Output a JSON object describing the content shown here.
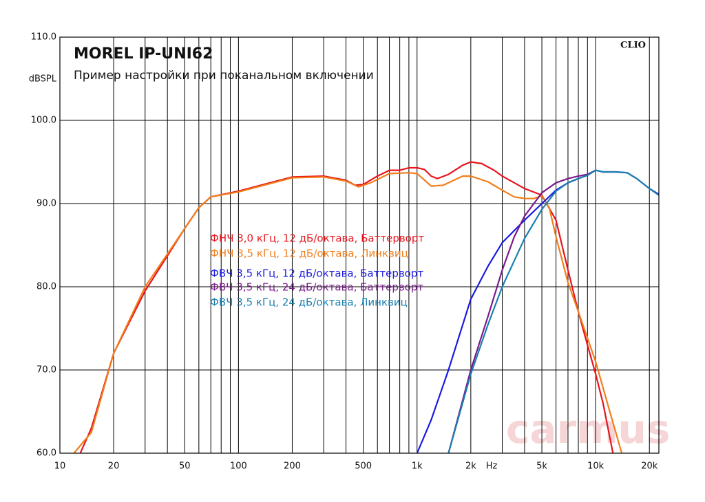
{
  "chart_data": {
    "type": "line",
    "title": "MOREL IP-UNI62",
    "subtitle": "Пример настройки при поканальном включении",
    "ylabel": "dBSPL",
    "xlabel": "Hz",
    "brand": "CLIO",
    "watermark": "carmus",
    "log_x": true,
    "grid": true,
    "xlim": [
      10,
      22600
    ],
    "ylim": [
      60,
      110
    ],
    "xticks": [
      10,
      20,
      50,
      100,
      200,
      500,
      {
        "value": 1000,
        "label": "1k"
      },
      {
        "value": 2000,
        "label": "2k"
      },
      {
        "value": 5000,
        "label": "5k"
      },
      {
        "value": 10000,
        "label": "10k"
      },
      {
        "value": 20000,
        "label": "20k"
      }
    ],
    "xminor": [
      30,
      40,
      60,
      70,
      80,
      90,
      300,
      400,
      600,
      700,
      800,
      900,
      3000,
      4000,
      6000,
      7000,
      8000,
      9000
    ],
    "yticks": [
      {
        "value": 60,
        "label": "60.0"
      },
      {
        "value": 70,
        "label": "70.0"
      },
      {
        "value": 80,
        "label": "80.0"
      },
      {
        "value": 90,
        "label": "90.0"
      },
      {
        "value": 100,
        "label": "100.0"
      },
      {
        "value": 110,
        "label": "110.0"
      }
    ],
    "series": [
      {
        "name": "ФНЧ 3,0 кГц, 12 дБ/октава, Баттерворт",
        "color": "#e8141c",
        "x": [
          13,
          15,
          20,
          30,
          50,
          60,
          70,
          100,
          150,
          200,
          300,
          400,
          450,
          500,
          600,
          700,
          800,
          900,
          1000,
          1100,
          1200,
          1300,
          1500,
          1800,
          2000,
          2300,
          2700,
          3000,
          4000,
          5000,
          6000,
          7000,
          8000,
          9000,
          10000,
          11000,
          12500
        ],
        "values": [
          60,
          63,
          72,
          79.5,
          87,
          89.5,
          90.8,
          91.5,
          92.5,
          93.2,
          93.3,
          92.8,
          92.2,
          92.3,
          93.3,
          94,
          94,
          94.3,
          94.3,
          94.1,
          93.3,
          93,
          93.5,
          94.6,
          95,
          94.8,
          94,
          93.3,
          91.8,
          91,
          88,
          82,
          77,
          73,
          69.5,
          66,
          60
        ]
      },
      {
        "name": "ФНЧ 3,5 кГц, 12 дБ/октава, Линквиц",
        "color": "#f07d1a",
        "x": [
          12,
          15,
          20,
          30,
          50,
          60,
          70,
          100,
          200,
          300,
          400,
          470,
          550,
          700,
          900,
          1000,
          1200,
          1400,
          1800,
          2000,
          2500,
          3000,
          3500,
          4000,
          4500,
          5000,
          5500,
          6000,
          7000,
          8000,
          10000,
          12000,
          14000
        ],
        "values": [
          60,
          62.5,
          72,
          80,
          87,
          89.5,
          90.8,
          91.4,
          93.1,
          93.2,
          92.7,
          92,
          92.5,
          93.6,
          93.7,
          93.6,
          92.1,
          92.2,
          93.3,
          93.3,
          92.6,
          91.6,
          90.8,
          90.6,
          90.6,
          90.9,
          89.5,
          86,
          80.5,
          77,
          71,
          65,
          60
        ]
      },
      {
        "name": "ФВЧ 3,5 кГц, 12 дБ/октава, Баттерворт",
        "color": "#1a1ae0",
        "x": [
          1000,
          1200,
          1500,
          2000,
          2500,
          3000,
          4000,
          5000,
          6000,
          7000,
          8000,
          9000,
          10000,
          11000,
          13000,
          15000,
          17000,
          20000,
          22600
        ],
        "values": [
          60,
          64,
          70,
          78.5,
          82.5,
          85.3,
          88,
          90,
          91.6,
          92.5,
          93,
          93.4,
          94,
          93.8,
          93.8,
          93.7,
          93,
          91.8,
          91.1
        ]
      },
      {
        "name": "ФВЧ 3,5 кГц, 24 дБ/октава, Баттерворт",
        "color": "#7a1a8c",
        "x": [
          1500,
          2000,
          2500,
          3000,
          3500,
          4000,
          5000,
          6000,
          7000,
          8000,
          9000,
          10000
        ],
        "values": [
          60,
          70,
          76.5,
          82,
          86,
          88.5,
          91.3,
          92.5,
          93,
          93.3,
          93.5,
          94
        ]
      },
      {
        "name": "ФВЧ 3,5 кГц, 24 дБ/октава, Линквиц",
        "color": "#1a7fb0",
        "x": [
          1500,
          2000,
          2500,
          3000,
          4000,
          5000,
          6000,
          7000,
          8000,
          9000,
          10000,
          11000,
          13000,
          15000,
          17000,
          20000,
          22600
        ],
        "values": [
          60,
          69.5,
          75.5,
          80,
          85.8,
          89.3,
          91.5,
          92.5,
          93,
          93.4,
          94,
          93.8,
          93.8,
          93.7,
          93,
          91.8,
          91
        ]
      }
    ]
  }
}
